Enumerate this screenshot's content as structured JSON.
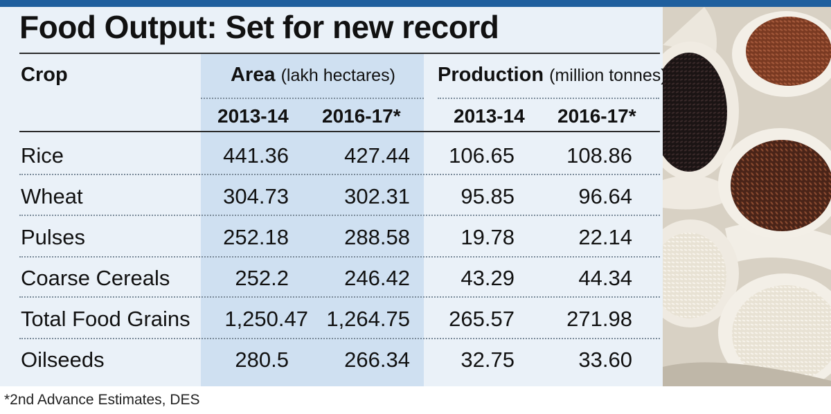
{
  "title": "Food Output: Set for new record",
  "headers": {
    "crop": "Crop",
    "area_bold": "Area",
    "area_unit": "(lakh hectares)",
    "production_bold": "Production",
    "production_unit": "(million tonnes)"
  },
  "years": [
    "2013-14",
    "2016-17*",
    "2013-14",
    "2016-17*"
  ],
  "rows": [
    {
      "crop": "Rice",
      "area_2013": "441.36",
      "area_2016": "427.44",
      "prod_2013": "106.65",
      "prod_2016": "108.86"
    },
    {
      "crop": "Wheat",
      "area_2013": "304.73",
      "area_2016": "302.31",
      "prod_2013": "95.85",
      "prod_2016": "96.64"
    },
    {
      "crop": "Pulses",
      "area_2013": "252.18",
      "area_2016": "288.58",
      "prod_2013": "19.78",
      "prod_2016": "22.14"
    },
    {
      "crop": "Coarse Cereals",
      "area_2013": "252.2",
      "area_2016": "246.42",
      "prod_2013": "43.29",
      "prod_2016": "44.34"
    },
    {
      "crop": "Total Food Grains",
      "area_2013": "1,250.47",
      "area_2016": "1,264.75",
      "prod_2013": "265.57",
      "prod_2016": "271.98"
    },
    {
      "crop": "Oilseeds",
      "area_2013": "280.5",
      "area_2016": "266.34",
      "prod_2013": "32.75",
      "prod_2016": "33.60"
    }
  ],
  "footnote": "*2nd Advance Estimates, DES",
  "colors": {
    "top_bar": "#1f5f9e",
    "panel": "#eaf1f8",
    "area_shade": "#cfe0f1"
  }
}
